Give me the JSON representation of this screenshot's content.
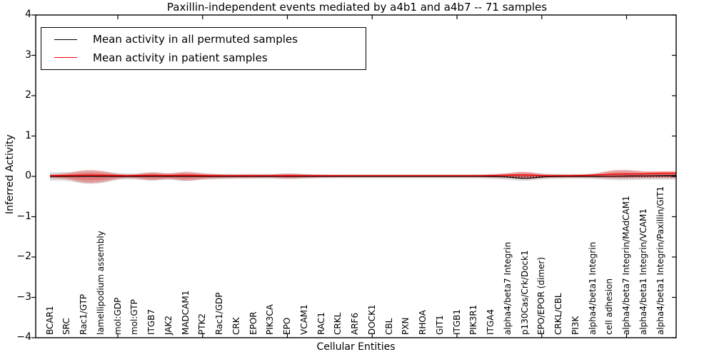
{
  "title": "Paxillin-independent events mediated by a4b1 and a4b7 -- 71 samples",
  "axes": {
    "xlabel": "Cellular Entities",
    "ylabel": "Inferred Activity",
    "ytick_labels": [
      "4",
      "3",
      "2",
      "1",
      "0",
      "−1",
      "−2",
      "−3",
      "−4"
    ]
  },
  "legend": {
    "items": [
      {
        "label": "Mean activity in all permuted samples",
        "color": "#000000"
      },
      {
        "label": "Mean activity in patient samples",
        "color": "#ff0000"
      }
    ]
  },
  "chart_data": {
    "type": "line",
    "title": "Paxillin-independent events mediated by a4b1 and a4b7 -- 71 samples",
    "xlabel": "Cellular Entities",
    "ylabel": "Inferred Activity",
    "ylim": [
      -4,
      4
    ],
    "yticks": [
      -4,
      -3,
      -2,
      -1,
      0,
      1,
      2,
      3,
      4
    ],
    "grid": false,
    "legend_position": "upper left",
    "zero_line": 0,
    "xtick_mark_indices": [
      4,
      9,
      14,
      19,
      24,
      29,
      34
    ],
    "categories": [
      "BCAR1",
      "SRC",
      "Rac1/GTP",
      "lamellipodium assembly",
      "mol:GDP",
      "mol:GTP",
      "ITGB7",
      "JAK2",
      "MADCAM1",
      "PTK2",
      "Rac1/GDP",
      "CRK",
      "EPOR",
      "PIK3CA",
      "EPO",
      "VCAM1",
      "RAC1",
      "CRKL",
      "ARF6",
      "DOCK1",
      "CBL",
      "PXN",
      "RHOA",
      "GIT1",
      "ITGB1",
      "PIK3R1",
      "ITGA4",
      "alpha4/beta7 Integrin",
      "p130Cas/Crk/Dock1",
      "EPO/EPOR (dimer)",
      "CRKL/CBL",
      "PI3K",
      "alpha4/beta1 Integrin",
      "cell adhesion",
      "alpha4/beta7 Integrin/MAdCAM1",
      "alpha4/beta1 Integrin/VCAM1",
      "alpha4/beta1 Integrin/Paxillin/GIT1"
    ],
    "series": [
      {
        "name": "Mean activity in all permuted samples",
        "color": "#000000",
        "values": [
          0,
          0,
          0,
          0,
          0,
          0,
          0,
          0,
          0,
          0,
          0,
          0,
          0,
          0,
          0,
          0,
          0,
          0,
          0,
          0,
          0,
          0,
          0,
          0,
          0,
          0,
          0,
          -0.01,
          -0.06,
          -0.01,
          0,
          0,
          0,
          0,
          0.01,
          0.01,
          0.02
        ]
      },
      {
        "name": "Mean activity in patient samples",
        "color": "#ff0000",
        "values": [
          0.02,
          0.02,
          0.03,
          0.03,
          0.02,
          0.02,
          0.03,
          0.02,
          0.03,
          0.02,
          0.02,
          0.02,
          0.02,
          0.02,
          0.02,
          0.02,
          0.02,
          0.02,
          0.02,
          0.02,
          0.02,
          0.02,
          0.02,
          0.02,
          0.02,
          0.02,
          0.02,
          0.03,
          0.04,
          0.02,
          0.02,
          0.02,
          0.03,
          0.05,
          0.06,
          0.06,
          0.08
        ]
      }
    ],
    "bands": [
      {
        "name": "permuted-sample-range",
        "fill": "#b8b8b8",
        "opacity": 0.5,
        "upper": [
          0.1,
          0.1,
          0.13,
          0.13,
          0.08,
          0.07,
          0.1,
          0.07,
          0.1,
          0.07,
          0.06,
          0.06,
          0.06,
          0.06,
          0.07,
          0.06,
          0.05,
          0.05,
          0.05,
          0.05,
          0.05,
          0.05,
          0.05,
          0.05,
          0.05,
          0.05,
          0.06,
          0.08,
          0.11,
          0.07,
          0.06,
          0.06,
          0.06,
          0.12,
          0.14,
          0.1,
          0.1
        ],
        "lower": [
          -0.1,
          -0.1,
          -0.19,
          -0.18,
          -0.08,
          -0.07,
          -0.12,
          -0.07,
          -0.13,
          -0.08,
          -0.07,
          -0.06,
          -0.06,
          -0.06,
          -0.07,
          -0.06,
          -0.05,
          -0.05,
          -0.05,
          -0.05,
          -0.05,
          -0.05,
          -0.05,
          -0.05,
          -0.05,
          -0.05,
          -0.06,
          -0.08,
          -0.12,
          -0.07,
          -0.06,
          -0.06,
          -0.06,
          -0.09,
          -0.1,
          -0.08,
          -0.08
        ]
      },
      {
        "name": "patient-sample-range",
        "fill": "#e85555",
        "opacity": 0.45,
        "upper": [
          0.04,
          0.07,
          0.16,
          0.15,
          0.05,
          0.04,
          0.12,
          0.06,
          0.13,
          0.07,
          0.05,
          0.04,
          0.05,
          0.04,
          0.08,
          0.05,
          0.04,
          0.03,
          0.03,
          0.03,
          0.03,
          0.03,
          0.03,
          0.03,
          0.03,
          0.03,
          0.04,
          0.07,
          0.13,
          0.05,
          0.04,
          0.04,
          0.05,
          0.15,
          0.17,
          0.12,
          0.13
        ],
        "lower": [
          -0.04,
          -0.06,
          -0.17,
          -0.16,
          -0.05,
          -0.04,
          -0.11,
          -0.05,
          -0.12,
          -0.06,
          -0.05,
          -0.04,
          -0.04,
          -0.03,
          -0.06,
          -0.04,
          -0.03,
          -0.02,
          -0.02,
          -0.02,
          -0.02,
          -0.02,
          -0.02,
          -0.02,
          -0.02,
          -0.02,
          -0.03,
          -0.04,
          -0.07,
          -0.04,
          -0.03,
          -0.03,
          -0.03,
          -0.05,
          -0.05,
          -0.04,
          -0.04
        ]
      }
    ]
  }
}
